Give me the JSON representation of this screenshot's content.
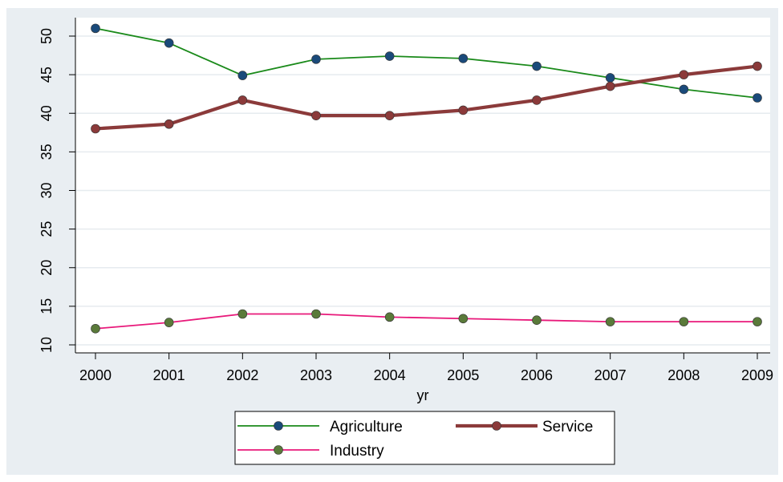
{
  "chart_data": {
    "type": "line",
    "x": [
      2000,
      2001,
      2002,
      2003,
      2004,
      2005,
      2006,
      2007,
      2008,
      2009
    ],
    "xlabel": "yr",
    "ylabel": "",
    "ylim": [
      10,
      52
    ],
    "yticks": [
      10,
      15,
      20,
      25,
      30,
      35,
      40,
      45,
      50
    ],
    "grid": true,
    "legend_position": "bottom",
    "series": [
      {
        "name": "Agriculture",
        "values": [
          51.0,
          49.1,
          44.9,
          47.0,
          47.4,
          47.1,
          46.1,
          44.6,
          43.1,
          42.0
        ],
        "line_color": "#1a8a1a",
        "marker_color": "#1a4a7a"
      },
      {
        "name": "Service",
        "values": [
          38.0,
          38.6,
          41.7,
          39.7,
          39.7,
          40.4,
          41.7,
          43.5,
          45.0,
          46.1
        ],
        "line_color": "#8b3a3a",
        "marker_color": "#8b3a3a"
      },
      {
        "name": "Industry",
        "values": [
          12.1,
          12.9,
          14.0,
          14.0,
          13.6,
          13.4,
          13.2,
          13.0,
          13.0,
          13.0
        ],
        "line_color": "#e8197a",
        "marker_color": "#5a7a3a"
      }
    ]
  }
}
